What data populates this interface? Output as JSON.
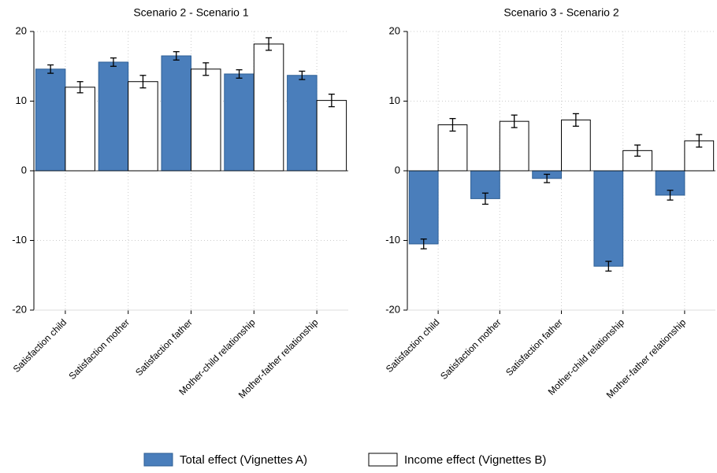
{
  "chart_data": [
    {
      "type": "bar",
      "title": "Scenario 2 - Scenario 1",
      "categories": [
        "Satisfaction child",
        "Satisfaction mother",
        "Satisfaction father",
        "Mother-child relationship",
        "Mother-father relationship"
      ],
      "series": [
        {
          "name": "Total effect (Vignettes A)",
          "color": "#4a7ebb",
          "values": [
            14.6,
            15.6,
            16.5,
            13.9,
            13.7
          ],
          "errors": [
            0.6,
            0.6,
            0.6,
            0.6,
            0.6
          ]
        },
        {
          "name": "Income effect (Vignettes B)",
          "color": "#ffffff",
          "values": [
            12.0,
            12.8,
            14.6,
            18.2,
            10.1
          ],
          "errors": [
            0.8,
            0.9,
            0.9,
            0.9,
            0.9
          ]
        }
      ],
      "ylim": [
        -20,
        20
      ],
      "yticks": [
        -20,
        -10,
        0,
        10,
        20
      ],
      "grid": true
    },
    {
      "type": "bar",
      "title": "Scenario 3 - Scenario 2",
      "categories": [
        "Satisfaction child",
        "Satisfaction mother",
        "Satisfaction father",
        "Mother-child relationship",
        "Mother-father relationship"
      ],
      "series": [
        {
          "name": "Total effect (Vignettes A)",
          "color": "#4a7ebb",
          "values": [
            -10.5,
            -4.0,
            -1.1,
            -13.7,
            -3.5
          ],
          "errors": [
            0.7,
            0.8,
            0.6,
            0.7,
            0.7
          ]
        },
        {
          "name": "Income effect (Vignettes B)",
          "color": "#ffffff",
          "values": [
            6.6,
            7.1,
            7.3,
            2.9,
            4.3
          ],
          "errors": [
            0.9,
            0.9,
            0.9,
            0.8,
            0.9
          ]
        }
      ],
      "ylim": [
        -20,
        20
      ],
      "yticks": [
        -20,
        -10,
        0,
        10,
        20
      ],
      "grid": true
    }
  ]
}
